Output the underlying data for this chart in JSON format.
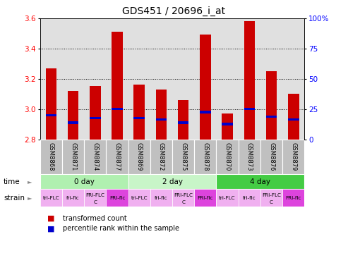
{
  "title": "GDS451 / 20696_i_at",
  "samples": [
    "GSM8868",
    "GSM8871",
    "GSM8874",
    "GSM8877",
    "GSM8869",
    "GSM8872",
    "GSM8875",
    "GSM8878",
    "GSM8870",
    "GSM8873",
    "GSM8876",
    "GSM8879"
  ],
  "red_values": [
    3.27,
    3.12,
    3.15,
    3.51,
    3.16,
    3.13,
    3.06,
    3.49,
    2.97,
    3.58,
    3.25,
    3.1
  ],
  "blue_values": [
    2.96,
    2.91,
    2.94,
    3.0,
    2.94,
    2.93,
    2.91,
    2.98,
    2.9,
    3.0,
    2.95,
    2.93
  ],
  "y_min": 2.8,
  "y_max": 3.6,
  "y_ticks_left": [
    2.8,
    3.0,
    3.2,
    3.4,
    3.6
  ],
  "y_right_labels": [
    "0",
    "25",
    "50",
    "75",
    "100%"
  ],
  "y_ticks_right": [
    0,
    25,
    50,
    75,
    100
  ],
  "dotted_lines": [
    3.0,
    3.2,
    3.4
  ],
  "time_groups": [
    {
      "label": "0 day",
      "start": 0,
      "end": 4,
      "color": "#b0f0b0"
    },
    {
      "label": "2 day",
      "start": 4,
      "end": 8,
      "color": "#c8f5c8"
    },
    {
      "label": "4 day",
      "start": 8,
      "end": 12,
      "color": "#44cc44"
    }
  ],
  "strain_labels": [
    "tri-FLC",
    "fri-flc",
    "FRI-FLC\nC",
    "FRI-flc",
    "tri-FLC",
    "fri-flc",
    "FRI-FLC\nC",
    "FRI-flc",
    "tri-FLC",
    "fri-flc",
    "FRI-FLC\nC",
    "FRI-flc"
  ],
  "strain_colors": [
    "#f0b0f0",
    "#f0b0f0",
    "#f0b0f0",
    "#dd44dd",
    "#f0b0f0",
    "#f0b0f0",
    "#f0b0f0",
    "#dd44dd",
    "#f0b0f0",
    "#f0b0f0",
    "#f0b0f0",
    "#dd44dd"
  ],
  "bar_color_red": "#cc0000",
  "bar_color_blue": "#0000cc",
  "background_plot": "#e0e0e0",
  "background_xtick": "#c0c0c0",
  "title_fontsize": 10,
  "tick_fontsize": 7.5,
  "bar_width": 0.5
}
